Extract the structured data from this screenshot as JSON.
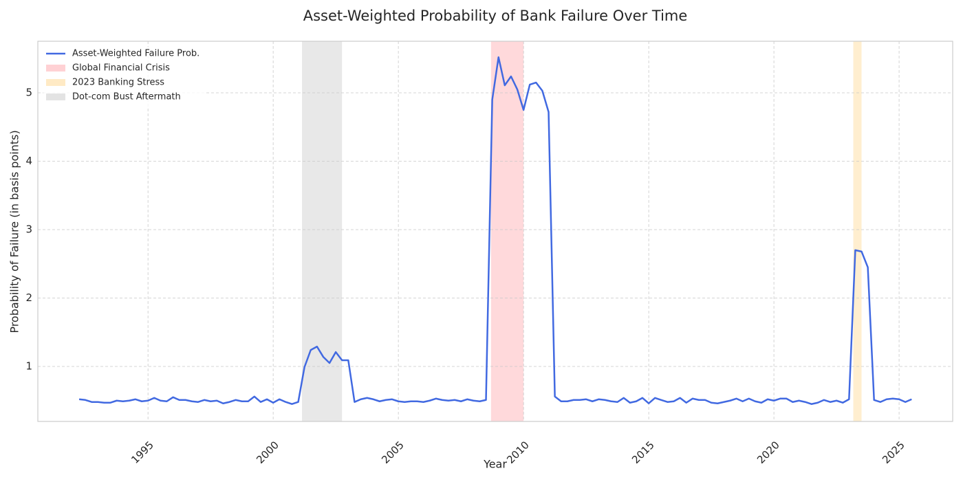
{
  "chart_data": {
    "type": "line",
    "title": "Asset-Weighted Probability of Bank Failure Over Time",
    "x_label": "Year",
    "y_label": "Probability of Failure (in basis points)",
    "xlim": [
      1990.6,
      2027.14
    ],
    "ylim": [
      0.196,
      5.754
    ],
    "xticks": [
      1995,
      2000,
      2005,
      2010,
      2015,
      2020,
      2025
    ],
    "yticks": [
      1,
      2,
      3,
      4,
      5
    ],
    "grid": true,
    "legend": "upper left",
    "x": [
      1992.25,
      1992.5,
      1992.75,
      1993,
      1993.25,
      1993.5,
      1993.75,
      1994,
      1994.25,
      1994.5,
      1994.75,
      1995,
      1995.25,
      1995.5,
      1995.75,
      1996,
      1996.25,
      1996.5,
      1996.75,
      1997,
      1997.25,
      1997.5,
      1997.75,
      1998,
      1998.25,
      1998.5,
      1998.75,
      1999,
      1999.25,
      1999.5,
      1999.75,
      2000,
      2000.25,
      2000.5,
      2000.75,
      2001,
      2001.25,
      2001.5,
      2001.75,
      2002,
      2002.25,
      2002.5,
      2002.75,
      2003,
      2003.25,
      2003.5,
      2003.75,
      2004,
      2004.25,
      2004.5,
      2004.75,
      2005,
      2005.25,
      2005.5,
      2005.75,
      2006,
      2006.25,
      2006.5,
      2006.75,
      2007,
      2007.25,
      2007.5,
      2007.75,
      2008,
      2008.25,
      2008.5,
      2008.75,
      2009,
      2009.25,
      2009.5,
      2009.75,
      2010,
      2010.25,
      2010.5,
      2010.75,
      2011,
      2011.25,
      2011.5,
      2011.75,
      2012,
      2012.25,
      2012.5,
      2012.75,
      2013,
      2013.25,
      2013.5,
      2013.75,
      2014,
      2014.25,
      2014.5,
      2014.75,
      2015,
      2015.25,
      2015.5,
      2015.75,
      2016,
      2016.25,
      2016.5,
      2016.75,
      2017,
      2017.25,
      2017.5,
      2017.75,
      2018,
      2018.25,
      2018.5,
      2018.75,
      2019,
      2019.25,
      2019.5,
      2019.75,
      2020,
      2020.25,
      2020.5,
      2020.75,
      2021,
      2021.25,
      2021.5,
      2021.75,
      2022,
      2022.25,
      2022.5,
      2022.75,
      2023,
      2023.25,
      2023.5,
      2023.75,
      2024,
      2024.25,
      2024.5,
      2024.75,
      2025,
      2025.25,
      2025.5
    ],
    "series": [
      {
        "name": "Asset-Weighted Failure Prob.",
        "color": "#4169e1",
        "values": [
          0.52,
          0.51,
          0.48,
          0.48,
          0.47,
          0.47,
          0.5,
          0.49,
          0.5,
          0.52,
          0.49,
          0.5,
          0.54,
          0.5,
          0.49,
          0.55,
          0.51,
          0.51,
          0.49,
          0.48,
          0.51,
          0.49,
          0.5,
          0.46,
          0.48,
          0.51,
          0.49,
          0.49,
          0.56,
          0.48,
          0.52,
          0.47,
          0.52,
          0.48,
          0.45,
          0.48,
          0.99,
          1.24,
          1.29,
          1.14,
          1.05,
          1.21,
          1.09,
          1.09,
          0.48,
          0.52,
          0.54,
          0.52,
          0.49,
          0.51,
          0.52,
          0.49,
          0.48,
          0.49,
          0.49,
          0.48,
          0.5,
          0.53,
          0.51,
          0.5,
          0.51,
          0.49,
          0.52,
          0.5,
          0.49,
          0.51,
          4.9,
          5.52,
          5.11,
          5.24,
          5.05,
          4.75,
          5.12,
          5.15,
          5.03,
          4.72,
          0.56,
          0.49,
          0.49,
          0.51,
          0.51,
          0.52,
          0.49,
          0.52,
          0.51,
          0.49,
          0.48,
          0.54,
          0.47,
          0.49,
          0.54,
          0.46,
          0.54,
          0.51,
          0.48,
          0.49,
          0.54,
          0.47,
          0.53,
          0.51,
          0.51,
          0.47,
          0.46,
          0.48,
          0.5,
          0.53,
          0.49,
          0.53,
          0.49,
          0.47,
          0.52,
          0.5,
          0.53,
          0.53,
          0.48,
          0.5,
          0.48,
          0.45,
          0.47,
          0.51,
          0.48,
          0.5,
          0.47,
          0.52,
          2.7,
          2.68,
          2.45,
          0.51,
          0.48,
          0.52,
          0.53,
          0.52,
          0.48,
          0.52
        ]
      }
    ],
    "spans": [
      {
        "name": "Global Financial Crisis",
        "color": "#ffcccf",
        "x0": 2008.7,
        "x1": 2010.0
      },
      {
        "name": "2023 Banking Stress",
        "color": "#ffe8bf",
        "x0": 2023.17,
        "x1": 2023.5
      },
      {
        "name": "Dot-com Bust Aftermath",
        "color": "#e0e0e0",
        "x0": 2001.15,
        "x1": 2002.75
      }
    ]
  }
}
